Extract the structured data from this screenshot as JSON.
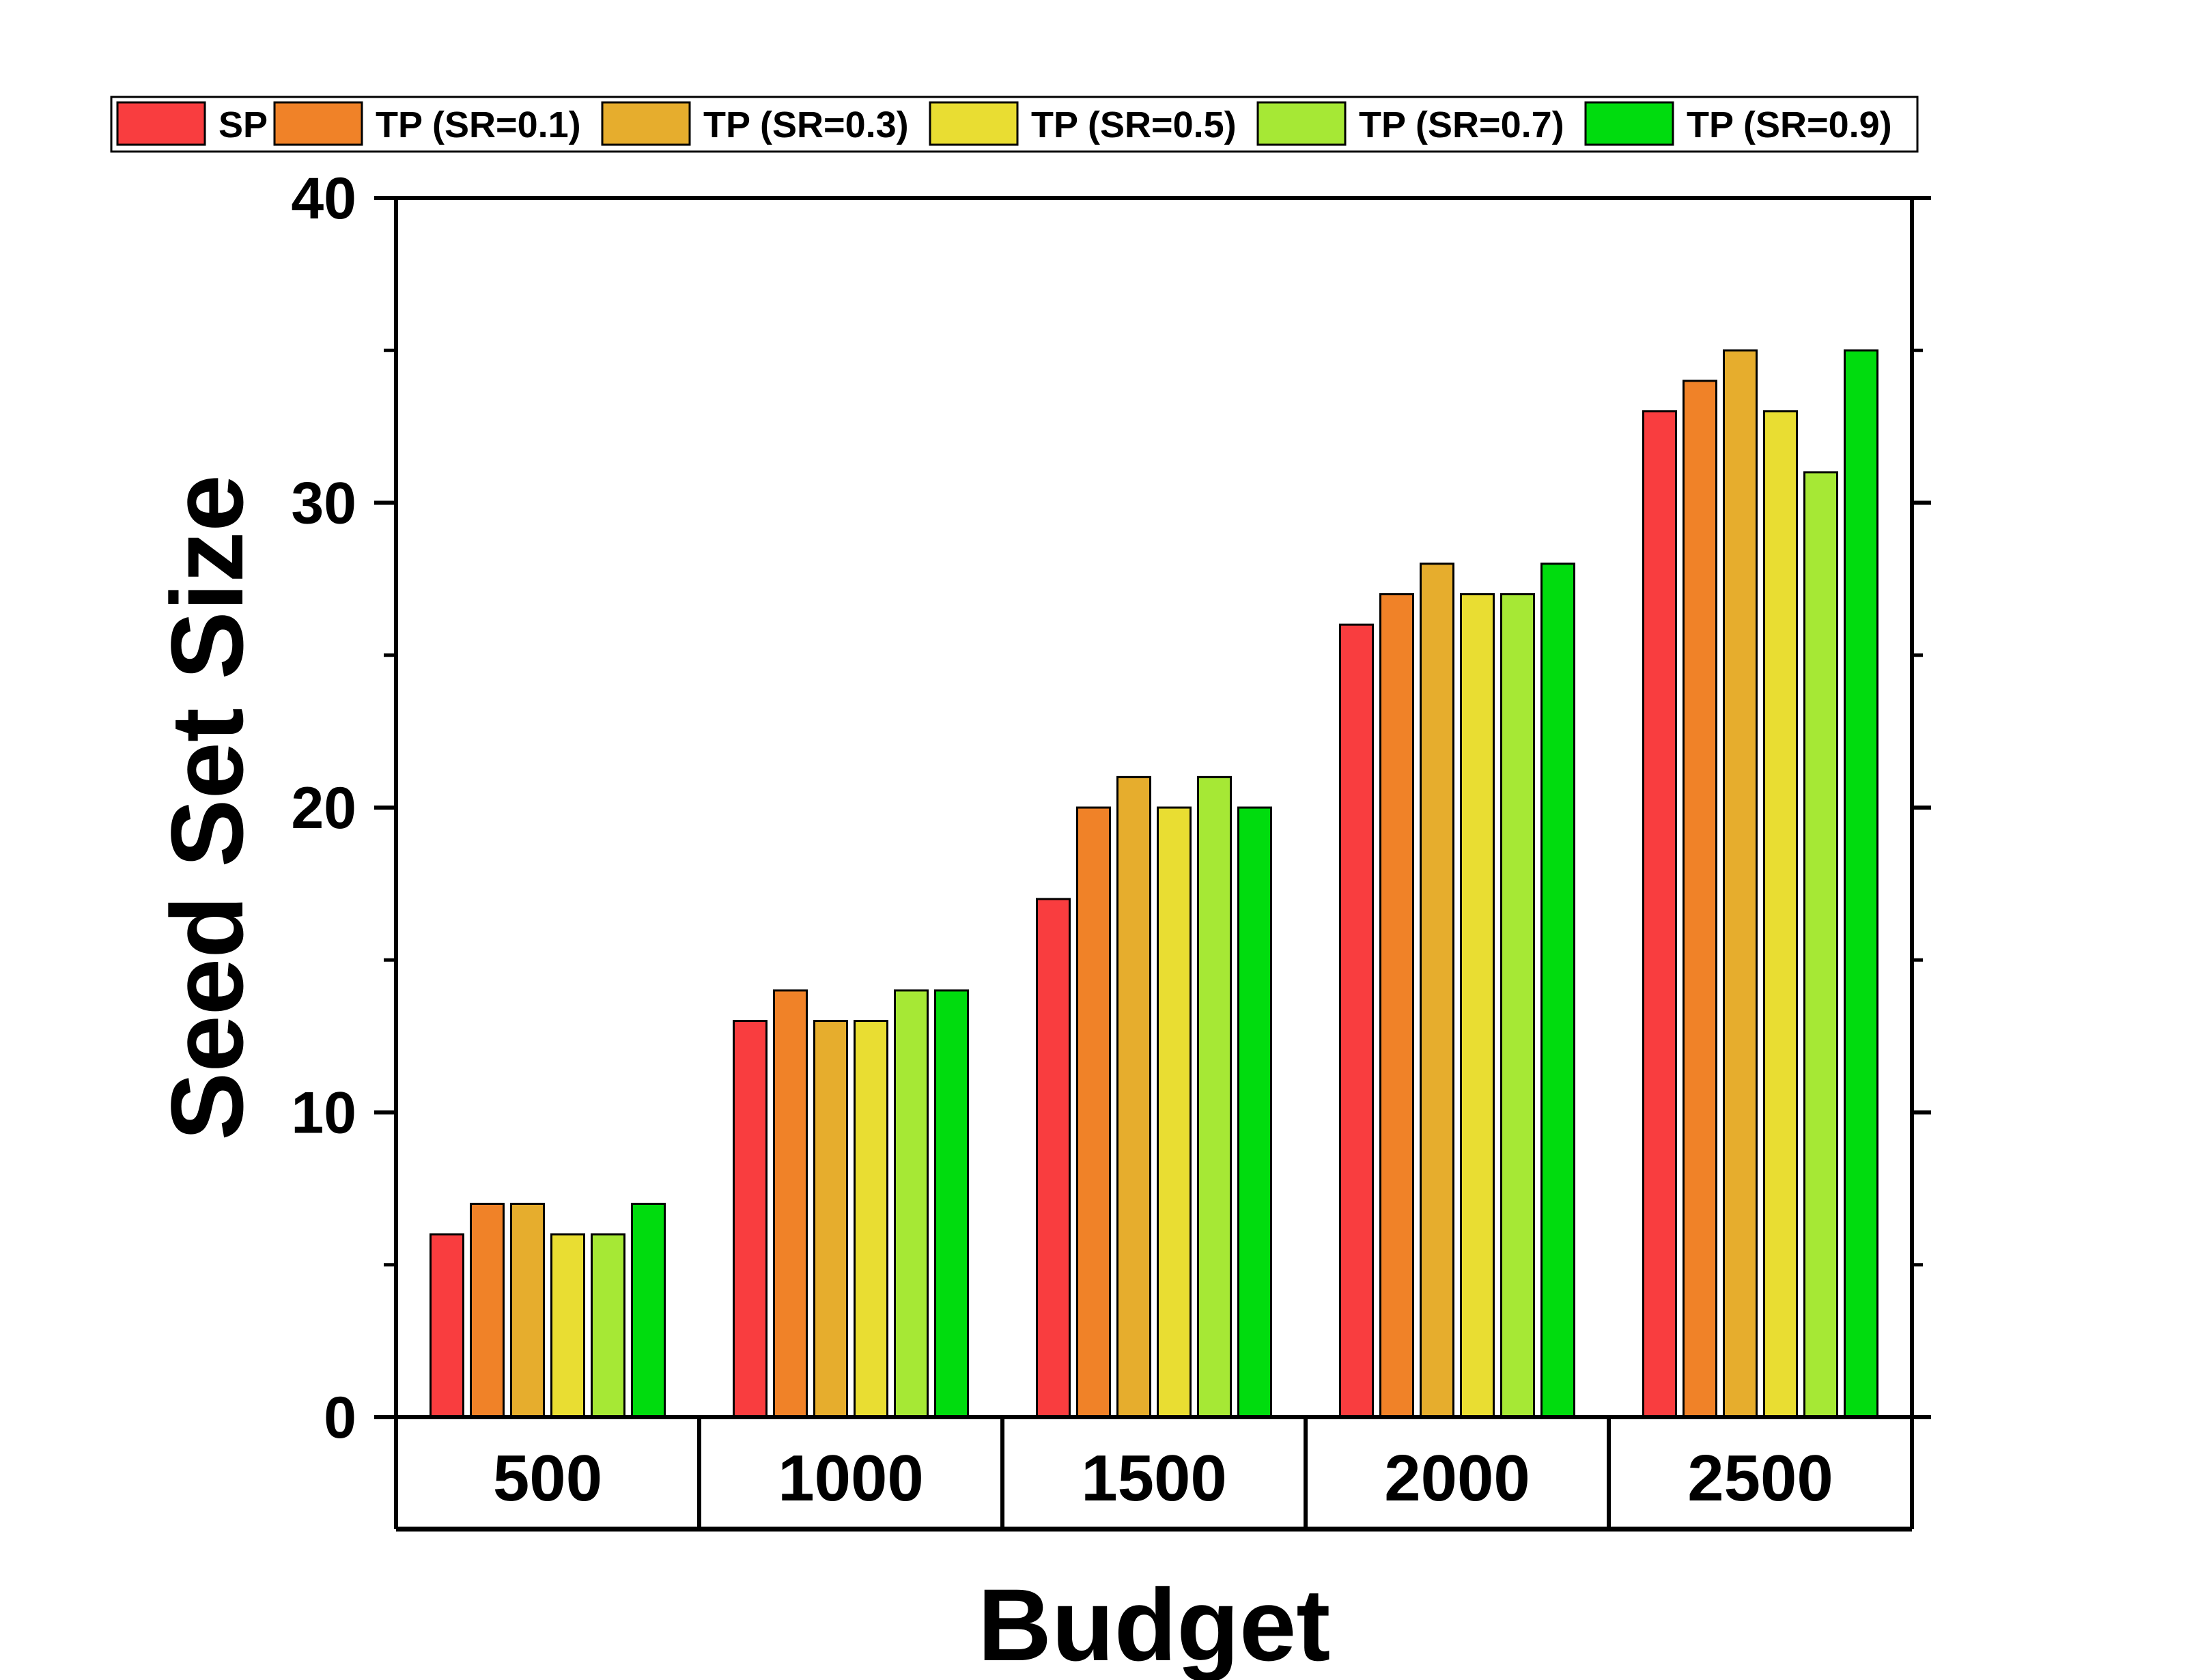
{
  "chart_data": {
    "type": "bar",
    "xlabel": "Budget",
    "ylabel": "Seed Set Size",
    "ylim": [
      0,
      40
    ],
    "yticks": [
      0,
      10,
      20,
      30,
      40
    ],
    "y_minor_ticks": [
      5,
      15,
      25,
      35
    ],
    "categories": [
      "500",
      "1000",
      "1500",
      "2000",
      "2500"
    ],
    "legend_position": "top",
    "grid": false,
    "series": [
      {
        "name": "SP",
        "color": "#f93d3f",
        "values": [
          6,
          13,
          17,
          26,
          33
        ]
      },
      {
        "name": "TP (SR=0.1)",
        "color": "#f08228",
        "values": [
          7,
          14,
          20,
          27,
          34
        ]
      },
      {
        "name": "TP (SR=0.3)",
        "color": "#e6ad2d",
        "values": [
          7,
          13,
          21,
          28,
          35
        ]
      },
      {
        "name": "TP (SR=0.5)",
        "color": "#e9dd32",
        "values": [
          6,
          13,
          20,
          27,
          33
        ]
      },
      {
        "name": "TP (SR=0.7)",
        "color": "#a6e835",
        "values": [
          6,
          14,
          21,
          27,
          31
        ]
      },
      {
        "name": "TP (SR=0.9)",
        "color": "#00dc0e",
        "values": [
          7,
          14,
          20,
          28,
          35
        ]
      }
    ]
  }
}
